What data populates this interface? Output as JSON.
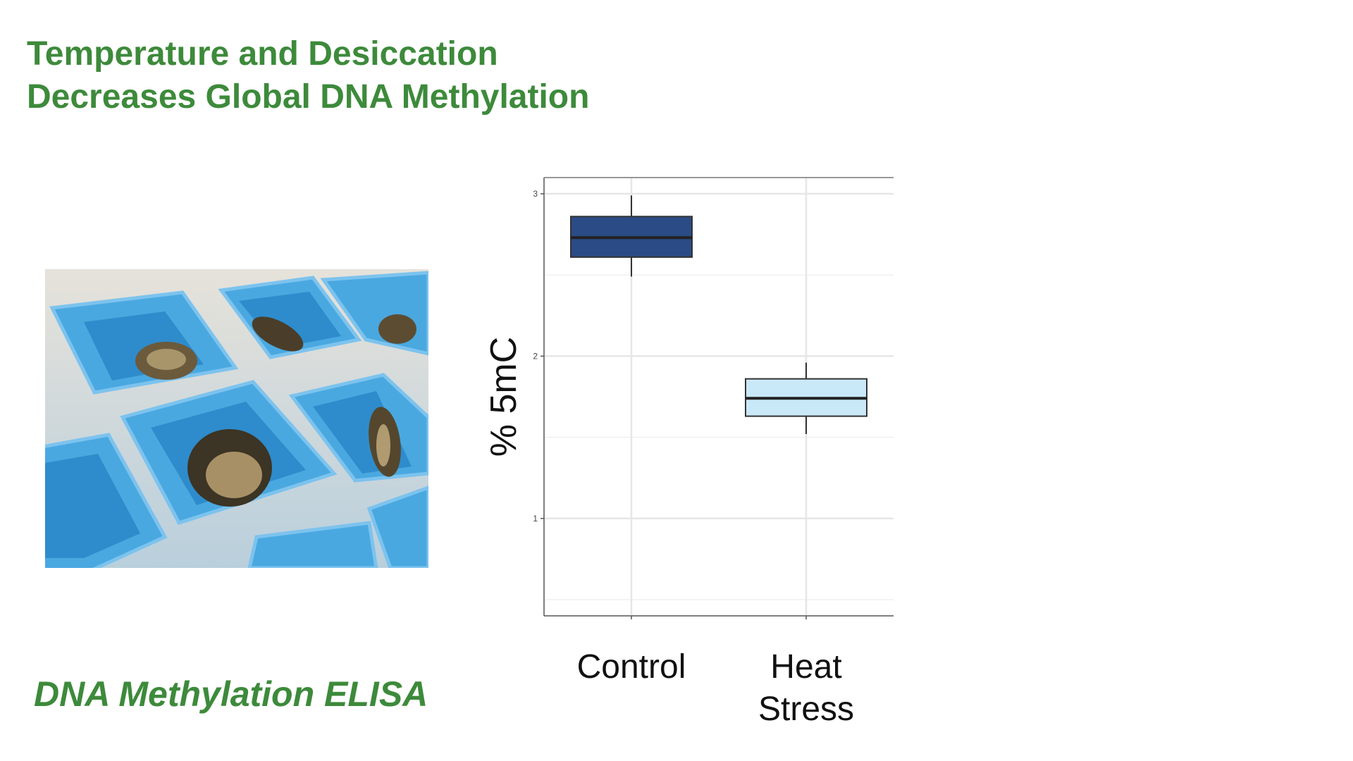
{
  "slide": {
    "title_line1": "Temperature and Desiccation",
    "title_line2": "Decreases Global DNA Methylation",
    "caption": "DNA Methylation ELISA",
    "accent_color": "#3d8a3b"
  },
  "photo": {
    "description_icon": "oyster-trays-photo"
  },
  "chart_data": {
    "type": "box",
    "ylabel": "% 5mC",
    "ylim": [
      0.4,
      3.1
    ],
    "yticks": [
      1,
      2,
      3
    ],
    "grid": true,
    "categories": [
      "Control",
      "Heat\nStress"
    ],
    "category_lines": [
      [
        "Control"
      ],
      [
        "Heat",
        "Stress"
      ]
    ],
    "boxes": [
      {
        "category": "Control",
        "min": 2.49,
        "q1": 2.61,
        "median": 2.73,
        "q3": 2.86,
        "max": 2.99,
        "color": "#2b4b86"
      },
      {
        "category": "Heat\nStress",
        "min": 1.52,
        "q1": 1.63,
        "median": 1.74,
        "q3": 1.86,
        "max": 1.96,
        "color": "#c9e8f8"
      }
    ]
  }
}
